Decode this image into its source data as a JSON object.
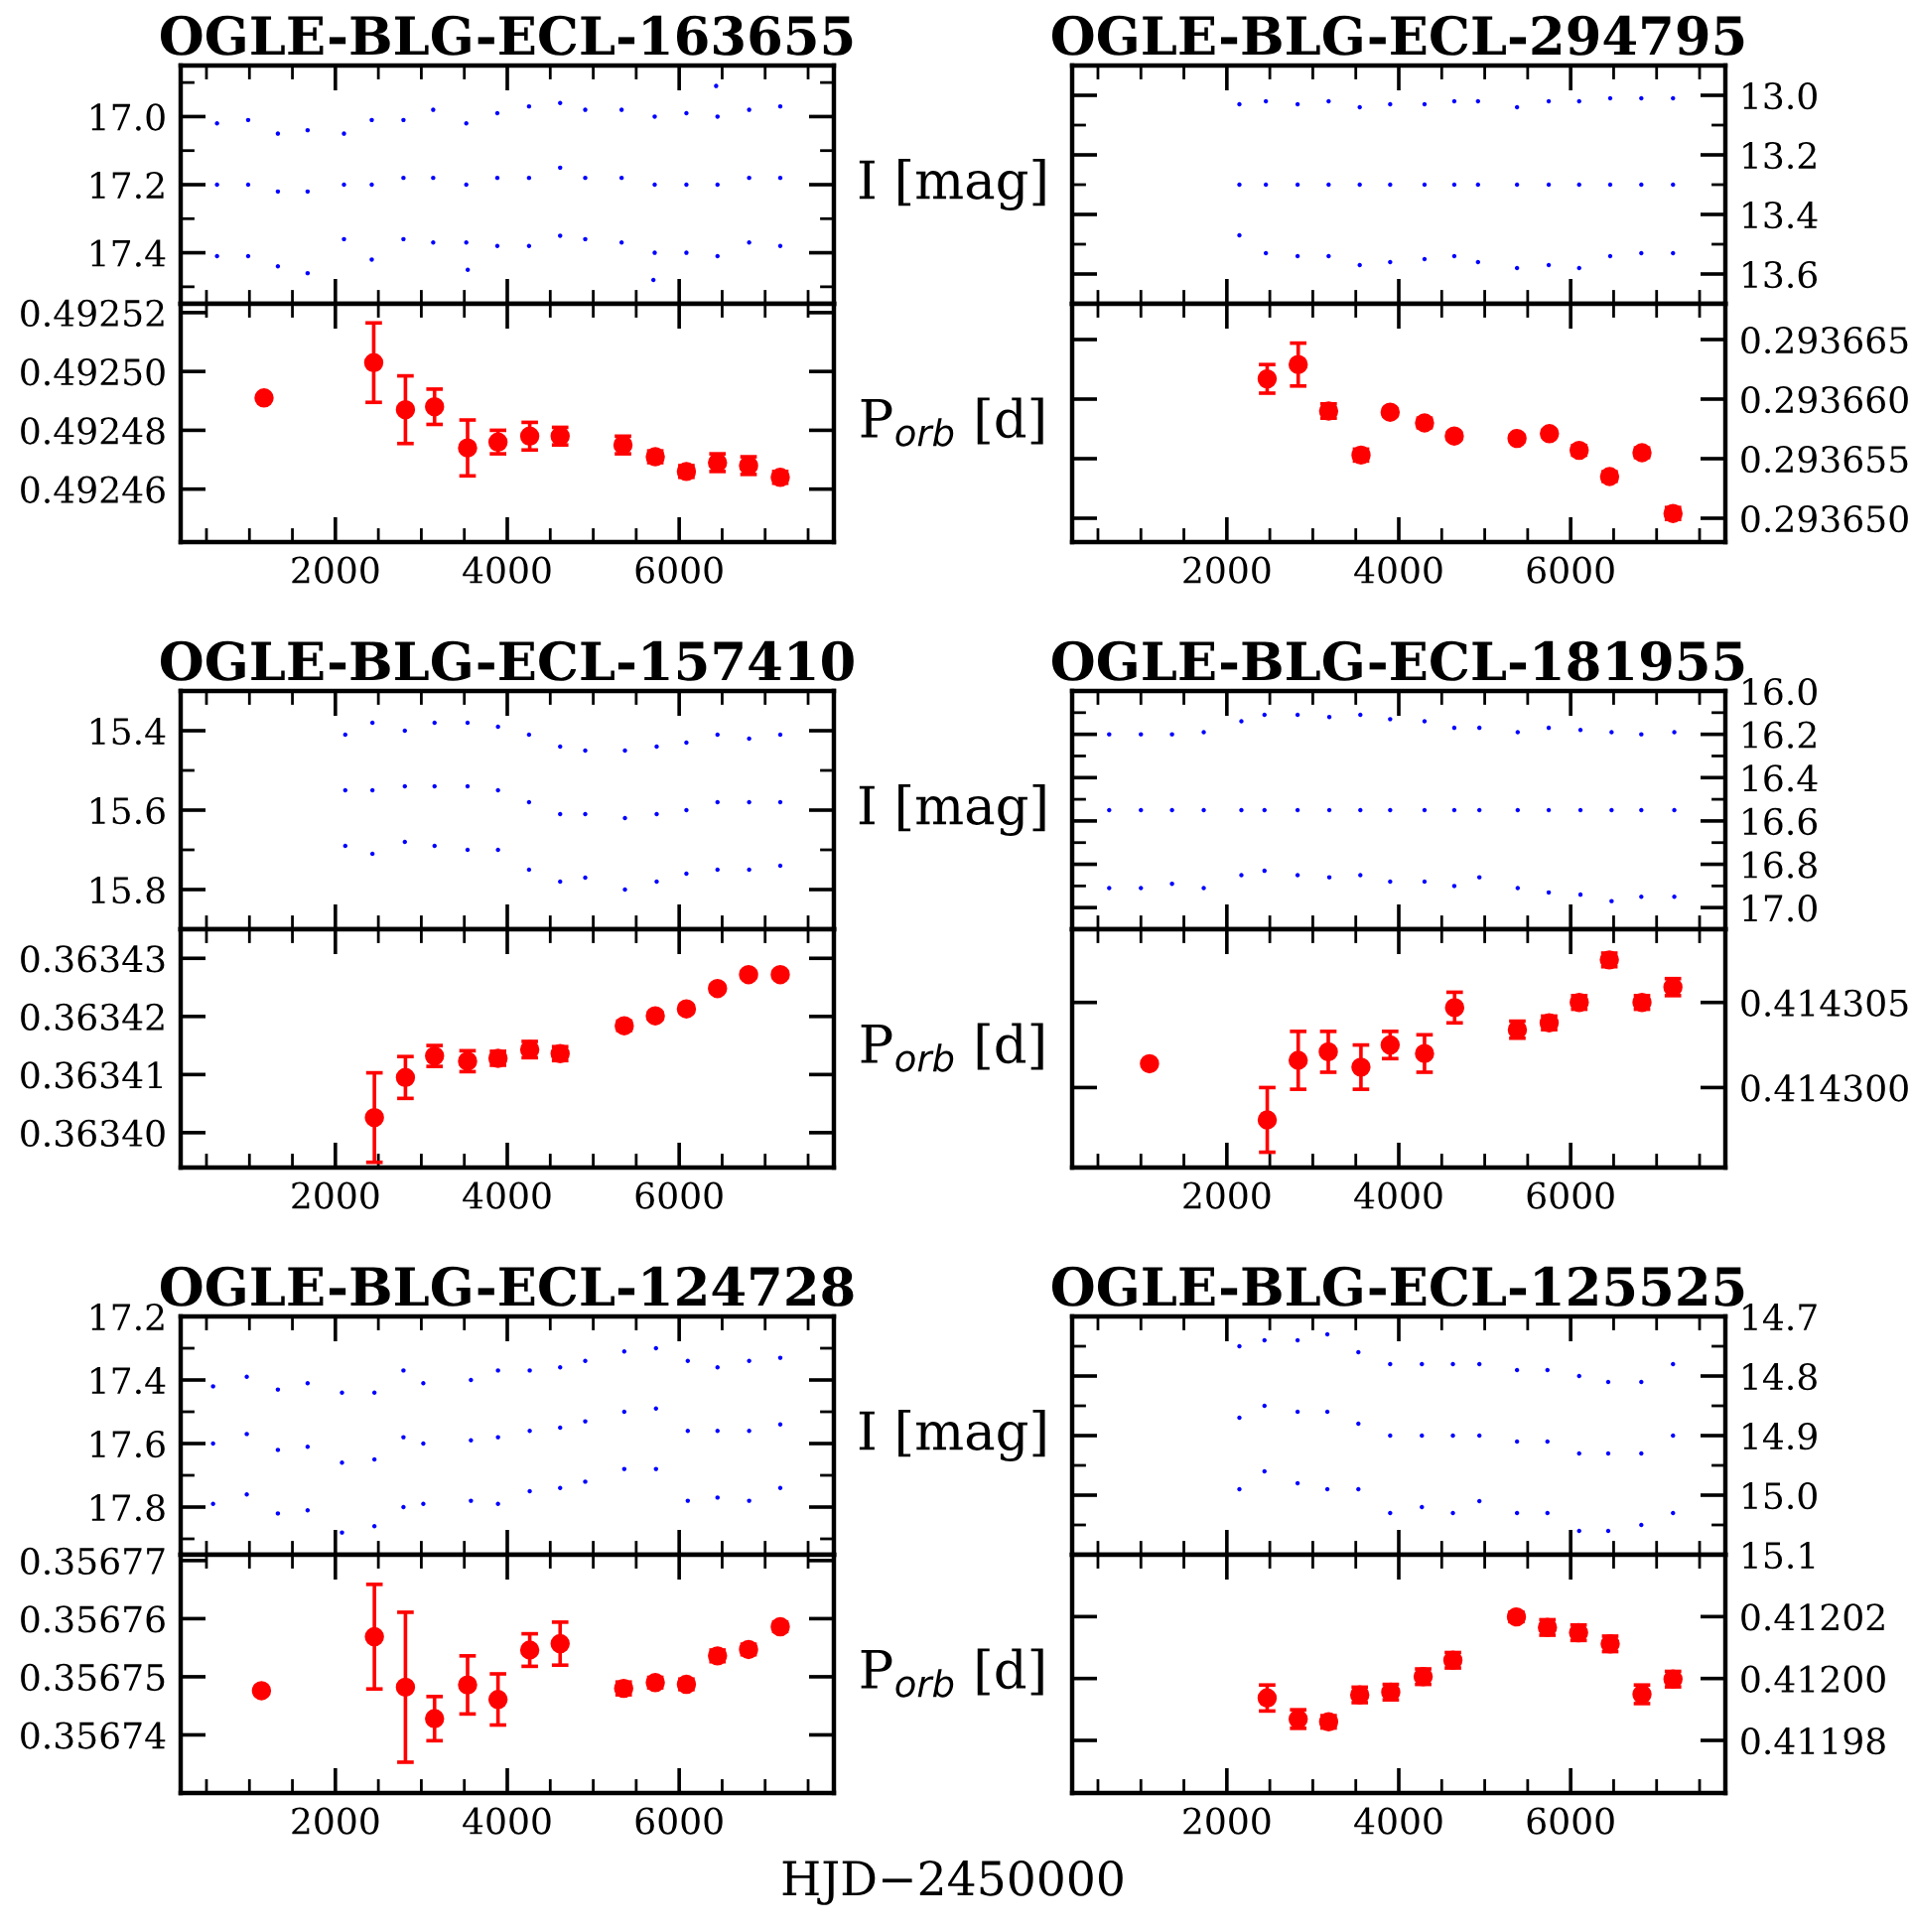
{
  "chart_data": [
    {
      "type": "scatter",
      "title": "OGLE-BLG-ECL-163655",
      "ylabel": "I [mag]",
      "marker": "circle",
      "tick_labels": "y",
      "xlim": [
        200,
        7800
      ],
      "ylim": [
        17.55,
        16.85
      ],
      "xticks": [
        {
          "value": 500,
          "label": null
        },
        {
          "value": 1000,
          "label": null
        },
        {
          "value": 1500,
          "label": null
        },
        2000,
        {
          "value": 2500,
          "label": null
        },
        {
          "value": 3000,
          "label": null
        },
        {
          "value": 3500,
          "label": null
        },
        4000,
        {
          "value": 4500,
          "label": null
        },
        {
          "value": 5000,
          "label": null
        },
        {
          "value": 5500,
          "label": null
        },
        6000,
        {
          "value": 6500,
          "label": null
        },
        {
          "value": 7000,
          "label": null
        },
        {
          "value": 7500,
          "label": null
        }
      ],
      "yticks": [
        {
          "value": 16.9,
          "label": null
        },
        {
          "value": 17.0,
          "label": "17.0"
        },
        {
          "value": 17.1,
          "label": null
        },
        {
          "value": 17.2,
          "label": "17.2"
        },
        {
          "value": 17.3,
          "label": null
        },
        {
          "value": 17.4,
          "label": "17.4"
        },
        {
          "value": 17.5,
          "label": null
        }
      ],
      "series": [
        {
          "color": "#0000ff",
          "x": [
            623,
            985,
            1331,
            1677,
            2100,
            2423,
            2792,
            3138,
            3523,
            3884,
            4253,
            4615,
            4907,
            5330,
            5715,
            6084,
            6446,
            6814,
            7176,
            623,
            985,
            1331,
            1677,
            2100,
            2423,
            2792,
            3138,
            3523,
            3884,
            4253,
            4615,
            4907,
            5330,
            5715,
            6084,
            6446,
            6814,
            7176,
            623,
            985,
            1331,
            1677,
            2100,
            2423,
            2792,
            3138,
            3523,
            3884,
            4253,
            4615,
            4907,
            5330,
            5715,
            6084,
            6446,
            6814,
            7176,
            3540,
            5700,
            6430
          ],
          "values": [
            17.02,
            17.01,
            17.05,
            17.04,
            17.05,
            17.01,
            17.01,
            16.98,
            17.02,
            16.99,
            16.97,
            16.96,
            16.98,
            16.98,
            17.0,
            16.99,
            17.0,
            16.98,
            16.97,
            17.2,
            17.2,
            17.22,
            17.22,
            17.2,
            17.2,
            17.18,
            17.18,
            17.2,
            17.18,
            17.18,
            17.15,
            17.18,
            17.18,
            17.2,
            17.2,
            17.2,
            17.18,
            17.18,
            17.41,
            17.41,
            17.44,
            17.46,
            17.36,
            17.42,
            17.36,
            17.37,
            17.37,
            17.38,
            17.38,
            17.35,
            17.36,
            17.37,
            17.4,
            17.4,
            17.41,
            17.37,
            17.38,
            17.45,
            17.48,
            16.91
          ]
        }
      ]
    },
    {
      "type": "scatter",
      "ylabel": "P$_{orb}$ [d]",
      "marker": "circle",
      "xlim": [
        200,
        7800
      ],
      "ylim": [
        0.492442,
        0.492523
      ],
      "xticks": [
        {
          "value": 500,
          "label": null
        },
        {
          "value": 1000,
          "label": null
        },
        {
          "value": 1500,
          "label": null
        },
        2000,
        {
          "value": 2500,
          "label": null
        },
        {
          "value": 3000,
          "label": null
        },
        {
          "value": 3500,
          "label": null
        },
        4000,
        {
          "value": 4500,
          "label": null
        },
        {
          "value": 5000,
          "label": null
        },
        {
          "value": 5500,
          "label": null
        },
        6000,
        {
          "value": 6500,
          "label": null
        },
        {
          "value": 7000,
          "label": null
        },
        {
          "value": 7500,
          "label": null
        }
      ],
      "yticks": [
        {
          "value": 0.49246,
          "label": "0.49246"
        },
        {
          "value": 0.49248,
          "label": "0.49248"
        },
        {
          "value": 0.4925,
          "label": "0.49250"
        },
        {
          "value": 0.49252,
          "label": "0.49252"
        }
      ],
      "series": [
        {
          "color": "#ff0000",
          "x": [
            1170,
            2446,
            2815,
            3154,
            3538,
            3892,
            4261,
            4615,
            5346,
            5722,
            6084,
            6446,
            6807,
            7176
          ],
          "values": [
            0.492491,
            0.492503,
            0.492487,
            0.492488,
            0.492474,
            0.492476,
            0.492478,
            0.492478,
            0.492475,
            0.492471,
            0.492466,
            0.492469,
            0.492468,
            0.492464
          ],
          "errors": [
            null,
            1.35e-05,
            1.15e-05,
            6e-06,
            9.5e-06,
            4e-06,
            4.7e-06,
            3e-06,
            3e-06,
            2e-06,
            2e-06,
            3e-06,
            3e-06,
            2e-06
          ]
        }
      ]
    },
    {
      "type": "scatter",
      "title": "OGLE-BLG-ECL-294795",
      "marker": "circle",
      "tick_labels": "y",
      "xlim": [
        200,
        7800
      ],
      "ylim": [
        13.7,
        12.9
      ],
      "xticks": [
        {
          "value": 500,
          "label": null
        },
        {
          "value": 1000,
          "label": null
        },
        {
          "value": 1500,
          "label": null
        },
        2000,
        {
          "value": 2500,
          "label": null
        },
        {
          "value": 3000,
          "label": null
        },
        {
          "value": 3500,
          "label": null
        },
        4000,
        {
          "value": 4500,
          "label": null
        },
        {
          "value": 5000,
          "label": null
        },
        {
          "value": 5500,
          "label": null
        },
        6000,
        {
          "value": 6500,
          "label": null
        },
        {
          "value": 7000,
          "label": null
        },
        {
          "value": 7500,
          "label": null
        }
      ],
      "yticks": [
        {
          "value": 13.0,
          "label": "13.0"
        },
        {
          "value": 13.1,
          "label": null
        },
        {
          "value": 13.2,
          "label": "13.2"
        },
        {
          "value": 13.3,
          "label": null
        },
        {
          "value": 13.4,
          "label": "13.4"
        },
        {
          "value": 13.5,
          "label": null
        },
        {
          "value": 13.6,
          "label": "13.6"
        }
      ],
      "series": [
        {
          "color": "#0000ff",
          "x": [
            2146,
            2454,
            2823,
            3184,
            3546,
            3900,
            4300,
            4646,
            4922,
            5376,
            5745,
            6099,
            6460,
            6822,
            7191,
            2146,
            2454,
            2823,
            3184,
            3546,
            3900,
            4300,
            4646,
            4922,
            5376,
            5745,
            6099,
            6460,
            6822,
            7191,
            2146,
            2454,
            2823,
            3184,
            3546,
            3900,
            4300,
            4646,
            4922,
            5376,
            5745,
            6099,
            6460,
            6822,
            7191
          ],
          "values": [
            13.03,
            13.02,
            13.03,
            13.02,
            13.04,
            13.03,
            13.03,
            13.02,
            13.02,
            13.04,
            13.02,
            13.02,
            13.01,
            13.01,
            13.01,
            13.3,
            13.3,
            13.3,
            13.3,
            13.3,
            13.3,
            13.3,
            13.3,
            13.3,
            13.3,
            13.3,
            13.3,
            13.3,
            13.3,
            13.3,
            13.47,
            13.53,
            13.54,
            13.54,
            13.57,
            13.56,
            13.55,
            13.54,
            13.56,
            13.58,
            13.57,
            13.58,
            13.54,
            13.53,
            13.53
          ]
        }
      ]
    },
    {
      "type": "scatter",
      "marker": "circle",
      "xlim": [
        200,
        7800
      ],
      "ylim": [
        0.293648,
        0.293668
      ],
      "xticks": [
        {
          "value": 500,
          "label": null
        },
        {
          "value": 1000,
          "label": null
        },
        {
          "value": 1500,
          "label": null
        },
        2000,
        {
          "value": 2500,
          "label": null
        },
        {
          "value": 3000,
          "label": null
        },
        {
          "value": 3500,
          "label": null
        },
        4000,
        {
          "value": 4500,
          "label": null
        },
        {
          "value": 5000,
          "label": null
        },
        {
          "value": 5500,
          "label": null
        },
        6000,
        {
          "value": 6500,
          "label": null
        },
        {
          "value": 7000,
          "label": null
        },
        {
          "value": 7500,
          "label": null
        }
      ],
      "yticks": [
        {
          "value": 0.29365,
          "label": "0.293650"
        },
        {
          "value": 0.293655,
          "label": "0.293655"
        },
        {
          "value": 0.29366,
          "label": "0.293660"
        },
        {
          "value": 0.293665,
          "label": "0.293665"
        }
      ],
      "series": [
        {
          "color": "#ff0000",
          "x": [
            2469,
            2830,
            3184,
            3561,
            3900,
            4300,
            4646,
            5376,
            5753,
            6099,
            6453,
            6830,
            7191
          ],
          "values": [
            0.2936617,
            0.2936629,
            0.293659,
            0.2936553,
            0.2936589,
            0.293658,
            0.2936569,
            0.2936567,
            0.2936571,
            0.2936557,
            0.2936535,
            0.2936555,
            0.2936504
          ],
          "errors": [
            1.2e-06,
            1.8e-06,
            6e-07,
            5e-07,
            3e-07,
            4e-07,
            3e-07,
            3e-07,
            3e-07,
            4e-07,
            4e-07,
            4e-07,
            5e-07
          ]
        }
      ]
    },
    {
      "type": "scatter",
      "title": "OGLE-BLG-ECL-157410",
      "ylabel": "I [mag]",
      "marker": "circle",
      "tick_labels": "y",
      "xlim": [
        200,
        7800
      ],
      "ylim": [
        15.9,
        15.3
      ],
      "xticks": [
        {
          "value": 500,
          "label": null
        },
        {
          "value": 1000,
          "label": null
        },
        {
          "value": 1500,
          "label": null
        },
        2000,
        {
          "value": 2500,
          "label": null
        },
        {
          "value": 3000,
          "label": null
        },
        {
          "value": 3500,
          "label": null
        },
        4000,
        {
          "value": 4500,
          "label": null
        },
        {
          "value": 5000,
          "label": null
        },
        {
          "value": 5500,
          "label": null
        },
        6000,
        {
          "value": 6500,
          "label": null
        },
        {
          "value": 7000,
          "label": null
        },
        {
          "value": 7500,
          "label": null
        }
      ],
      "yticks": [
        {
          "value": 15.4,
          "label": "15.4"
        },
        {
          "value": 15.5,
          "label": null
        },
        {
          "value": 15.6,
          "label": "15.6"
        },
        {
          "value": 15.7,
          "label": null
        },
        {
          "value": 15.8,
          "label": "15.8"
        }
      ],
      "series": [
        {
          "color": "#0000ff",
          "x": [
            2115,
            2431,
            2808,
            3154,
            3538,
            3892,
            4253,
            4615,
            4907,
            5369,
            5738,
            6084,
            6446,
            6814,
            7176,
            2115,
            2431,
            2808,
            3154,
            3538,
            3892,
            4253,
            4615,
            4907,
            5369,
            5738,
            6084,
            6446,
            6814,
            7176,
            2115,
            2431,
            2808,
            3154,
            3538,
            3892,
            4253,
            4615,
            4907,
            5369,
            5738,
            6084,
            6446,
            6814,
            7176
          ],
          "values": [
            15.41,
            15.38,
            15.4,
            15.38,
            15.38,
            15.39,
            15.41,
            15.44,
            15.45,
            15.45,
            15.44,
            15.43,
            15.41,
            15.42,
            15.41,
            15.55,
            15.55,
            15.54,
            15.54,
            15.54,
            15.55,
            15.58,
            15.61,
            15.61,
            15.62,
            15.61,
            15.6,
            15.58,
            15.58,
            15.58,
            15.69,
            15.71,
            15.68,
            15.69,
            15.7,
            15.7,
            15.75,
            15.78,
            15.77,
            15.8,
            15.78,
            15.76,
            15.75,
            15.75,
            15.74
          ]
        }
      ]
    },
    {
      "type": "scatter",
      "ylabel": "P$_{orb}$ [d]",
      "marker": "circle",
      "xlim": [
        200,
        7800
      ],
      "ylim": [
        0.363394,
        0.363435
      ],
      "xticks": [
        {
          "value": 500,
          "label": null
        },
        {
          "value": 1000,
          "label": null
        },
        {
          "value": 1500,
          "label": null
        },
        2000,
        {
          "value": 2500,
          "label": null
        },
        {
          "value": 3000,
          "label": null
        },
        {
          "value": 3500,
          "label": null
        },
        4000,
        {
          "value": 4500,
          "label": null
        },
        {
          "value": 5000,
          "label": null
        },
        {
          "value": 5500,
          "label": null
        },
        6000,
        {
          "value": 6500,
          "label": null
        },
        {
          "value": 7000,
          "label": null
        },
        {
          "value": 7500,
          "label": null
        }
      ],
      "yticks": [
        {
          "value": 0.3634,
          "label": "0.36340"
        },
        {
          "value": 0.36341,
          "label": "0.36341"
        },
        {
          "value": 0.36342,
          "label": "0.36342"
        },
        {
          "value": 0.36343,
          "label": "0.36343"
        }
      ],
      "series": [
        {
          "color": "#ff0000",
          "x": [
            2454,
            2815,
            3154,
            3538,
            3892,
            4261,
            4615,
            5361,
            5722,
            6084,
            6446,
            6807,
            7176
          ],
          "values": [
            0.3634026,
            0.3634095,
            0.3634132,
            0.3634123,
            0.3634128,
            0.3634143,
            0.3634136,
            0.3634184,
            0.3634201,
            0.3634213,
            0.3634248,
            0.3634272,
            0.3634272
          ],
          "errors": [
            7.7e-06,
            3.6e-06,
            1.8e-06,
            1.8e-06,
            1.2e-06,
            1.4e-06,
            1.2e-06,
            8e-07,
            6e-07,
            6e-07,
            6e-07,
            6e-07,
            6e-07
          ]
        }
      ]
    },
    {
      "type": "scatter",
      "title": "OGLE-BLG-ECL-181955",
      "marker": "circle",
      "tick_labels": "y",
      "xlim": [
        200,
        7800
      ],
      "ylim": [
        17.1,
        16.0
      ],
      "xticks": [
        {
          "value": 500,
          "label": null
        },
        {
          "value": 1000,
          "label": null
        },
        {
          "value": 1500,
          "label": null
        },
        2000,
        {
          "value": 2500,
          "label": null
        },
        {
          "value": 3000,
          "label": null
        },
        {
          "value": 3500,
          "label": null
        },
        4000,
        {
          "value": 4500,
          "label": null
        },
        {
          "value": 5000,
          "label": null
        },
        {
          "value": 5500,
          "label": null
        },
        6000,
        {
          "value": 6500,
          "label": null
        },
        {
          "value": 7000,
          "label": null
        },
        {
          "value": 7500,
          "label": null
        }
      ],
      "yticks": [
        {
          "value": 16.0,
          "label": "16.0"
        },
        {
          "value": 16.1,
          "label": null
        },
        {
          "value": 16.2,
          "label": "16.2"
        },
        {
          "value": 16.3,
          "label": null
        },
        {
          "value": 16.4,
          "label": "16.4"
        },
        {
          "value": 16.5,
          "label": null
        },
        {
          "value": 16.6,
          "label": "16.6"
        },
        {
          "value": 16.7,
          "label": null
        },
        {
          "value": 16.8,
          "label": "16.8"
        },
        {
          "value": 16.9,
          "label": null
        },
        {
          "value": 17.0,
          "label": "17.0"
        }
      ],
      "series": [
        {
          "color": "#0000ff",
          "x": [
            631,
            1000,
            1362,
            1731,
            2169,
            2438,
            2823,
            3192,
            3553,
            3900,
            4300,
            4646,
            4938,
            5384,
            5745,
            6114,
            6476,
            6822,
            7206,
            631,
            1000,
            1362,
            1731,
            2169,
            2438,
            2823,
            3192,
            3553,
            3900,
            4300,
            4646,
            4938,
            5384,
            5745,
            6114,
            6476,
            6822,
            7206,
            631,
            1000,
            1362,
            1731,
            2169,
            2438,
            2823,
            3192,
            3553,
            3900,
            4300,
            4646,
            4938,
            5384,
            5745,
            6114,
            6476,
            6822,
            7206
          ],
          "values": [
            16.2,
            16.2,
            16.2,
            16.19,
            16.14,
            16.11,
            16.11,
            16.12,
            16.11,
            16.13,
            16.14,
            16.17,
            16.17,
            16.19,
            16.17,
            16.18,
            16.19,
            16.2,
            16.19,
            16.55,
            16.55,
            16.55,
            16.55,
            16.55,
            16.55,
            16.55,
            16.55,
            16.55,
            16.55,
            16.55,
            16.55,
            16.55,
            16.55,
            16.55,
            16.55,
            16.55,
            16.55,
            16.55,
            16.91,
            16.91,
            16.89,
            16.91,
            16.85,
            16.83,
            16.85,
            16.86,
            16.85,
            16.88,
            16.88,
            16.9,
            16.86,
            16.91,
            16.93,
            16.94,
            16.97,
            16.95,
            16.95
          ]
        }
      ]
    },
    {
      "type": "scatter",
      "marker": "circle",
      "xlim": [
        200,
        7800
      ],
      "ylim": [
        0.4142953,
        0.4143093
      ],
      "xticks": [
        {
          "value": 500,
          "label": null
        },
        {
          "value": 1000,
          "label": null
        },
        {
          "value": 1500,
          "label": null
        },
        2000,
        {
          "value": 2500,
          "label": null
        },
        {
          "value": 3000,
          "label": null
        },
        {
          "value": 3500,
          "label": null
        },
        4000,
        {
          "value": 4500,
          "label": null
        },
        {
          "value": 5000,
          "label": null
        },
        {
          "value": 5500,
          "label": null
        },
        6000,
        {
          "value": 6500,
          "label": null
        },
        {
          "value": 7000,
          "label": null
        },
        {
          "value": 7500,
          "label": null
        }
      ],
      "yticks": [
        {
          "value": 0.4143,
          "label": "0.414300"
        },
        {
          "value": 0.414305,
          "label": "0.414305"
        }
      ],
      "series": [
        {
          "color": "#ff0000",
          "x": [
            1100,
            2470,
            2830,
            3180,
            3560,
            3900,
            4300,
            4650,
            5380,
            5750,
            6100,
            6450,
            6830,
            7190
          ],
          "values": [
            0.4143014,
            0.4142981,
            0.4143016,
            0.4143021,
            0.4143012,
            0.4143025,
            0.414302,
            0.4143047,
            0.4143034,
            0.4143038,
            0.414305,
            0.4143075,
            0.414305,
            0.4143059
          ],
          "errors": [
            null,
            1.9e-06,
            1.7e-06,
            1.2e-06,
            1.3e-06,
            8e-07,
            1.1e-06,
            9e-07,
            5e-07,
            4e-07,
            4e-07,
            4e-07,
            4e-07,
            5e-07
          ]
        }
      ]
    },
    {
      "type": "scatter",
      "title": "OGLE-BLG-ECL-124728",
      "ylabel": "I [mag]",
      "marker": "circle",
      "tick_labels": "y",
      "xlim": [
        200,
        7800
      ],
      "ylim": [
        17.95,
        17.2
      ],
      "xticks": [
        {
          "value": 500,
          "label": null
        },
        {
          "value": 1000,
          "label": null
        },
        {
          "value": 1500,
          "label": null
        },
        2000,
        {
          "value": 2500,
          "label": null
        },
        {
          "value": 3000,
          "label": null
        },
        {
          "value": 3500,
          "label": null
        },
        4000,
        {
          "value": 4500,
          "label": null
        },
        {
          "value": 5000,
          "label": null
        },
        {
          "value": 5500,
          "label": null
        },
        6000,
        {
          "value": 6500,
          "label": null
        },
        {
          "value": 7000,
          "label": null
        },
        {
          "value": 7500,
          "label": null
        }
      ],
      "yticks": [
        {
          "value": 17.2,
          "label": "17.2"
        },
        {
          "value": 17.3,
          "label": null
        },
        {
          "value": 17.4,
          "label": "17.4"
        },
        {
          "value": 17.5,
          "label": null
        },
        {
          "value": 17.6,
          "label": "17.6"
        },
        {
          "value": 17.7,
          "label": null
        },
        {
          "value": 17.8,
          "label": "17.8"
        },
        {
          "value": 17.9,
          "label": null
        }
      ],
      "series": [
        {
          "color": "#0000ff",
          "x": [
            577,
            969,
            1331,
            1677,
            2077,
            2454,
            2792,
            3023,
            3577,
            3892,
            4261,
            4615,
            4907,
            5361,
            5730,
            6100,
            6446,
            6814,
            7176,
            577,
            969,
            1331,
            1677,
            2077,
            2454,
            2792,
            3023,
            3577,
            3892,
            4261,
            4615,
            4907,
            5361,
            5730,
            6100,
            6446,
            6814,
            7176,
            577,
            969,
            1331,
            1677,
            2077,
            2454,
            2792,
            3023,
            3577,
            3892,
            4261,
            4615,
            4907,
            5361,
            5730,
            6100,
            6446,
            6814,
            7176
          ],
          "values": [
            17.42,
            17.39,
            17.43,
            17.41,
            17.44,
            17.44,
            17.37,
            17.41,
            17.4,
            17.37,
            17.37,
            17.36,
            17.34,
            17.31,
            17.3,
            17.34,
            17.36,
            17.34,
            17.33,
            17.6,
            17.57,
            17.62,
            17.61,
            17.66,
            17.65,
            17.58,
            17.6,
            17.59,
            17.58,
            17.56,
            17.55,
            17.53,
            17.5,
            17.49,
            17.56,
            17.56,
            17.56,
            17.54,
            17.79,
            17.76,
            17.82,
            17.81,
            17.88,
            17.86,
            17.8,
            17.79,
            17.78,
            17.79,
            17.75,
            17.74,
            17.72,
            17.68,
            17.68,
            17.78,
            17.77,
            17.78,
            17.74
          ]
        }
      ]
    },
    {
      "type": "scatter",
      "ylabel": "P$_{orb}$ [d]",
      "xlabel": "HJD−2450000",
      "marker": "circle",
      "xlim": [
        200,
        7800
      ],
      "ylim": [
        0.35673,
        0.356771
      ],
      "xticks": [
        {
          "value": 500,
          "label": null
        },
        {
          "value": 1000,
          "label": null
        },
        {
          "value": 1500,
          "label": null
        },
        2000,
        {
          "value": 2500,
          "label": null
        },
        {
          "value": 3000,
          "label": null
        },
        {
          "value": 3500,
          "label": null
        },
        4000,
        {
          "value": 4500,
          "label": null
        },
        {
          "value": 5000,
          "label": null
        },
        {
          "value": 5500,
          "label": null
        },
        6000,
        {
          "value": 6500,
          "label": null
        },
        {
          "value": 7000,
          "label": null
        },
        {
          "value": 7500,
          "label": null
        }
      ],
      "yticks": [
        {
          "value": 0.35674,
          "label": "0.35674"
        },
        {
          "value": 0.35675,
          "label": "0.35675"
        },
        {
          "value": 0.35676,
          "label": "0.35676"
        },
        {
          "value": 0.35677,
          "label": "0.35677"
        }
      ],
      "series": [
        {
          "color": "#ff0000",
          "x": [
            1140,
            2454,
            2815,
            3154,
            3538,
            3892,
            4261,
            4615,
            5354,
            5722,
            6084,
            6446,
            6807,
            7176
          ],
          "values": [
            0.3567476,
            0.3567569,
            0.3567482,
            0.3567428,
            0.3567486,
            0.3567461,
            0.3567546,
            0.3567557,
            0.356748,
            0.356749,
            0.3567487,
            0.3567536,
            0.3567547,
            0.3567586
          ],
          "errors": [
            null,
            9e-06,
            1.29e-05,
            3.8e-06,
            5e-06,
            4.4e-06,
            2.8e-06,
            3.7e-06,
            1.1e-06,
            9e-07,
            9e-07,
            1e-06,
            9e-07,
            8e-07
          ]
        }
      ]
    },
    {
      "type": "scatter",
      "title": "OGLE-BLG-ECL-125525",
      "marker": "circle",
      "tick_labels": "y",
      "xlim": [
        200,
        7800
      ],
      "ylim": [
        15.1,
        14.7
      ],
      "xticks": [
        {
          "value": 500,
          "label": null
        },
        {
          "value": 1000,
          "label": null
        },
        {
          "value": 1500,
          "label": null
        },
        2000,
        {
          "value": 2500,
          "label": null
        },
        {
          "value": 3000,
          "label": null
        },
        {
          "value": 3500,
          "label": null
        },
        4000,
        {
          "value": 4500,
          "label": null
        },
        {
          "value": 5000,
          "label": null
        },
        {
          "value": 5500,
          "label": null
        },
        6000,
        {
          "value": 6500,
          "label": null
        },
        {
          "value": 7000,
          "label": null
        },
        {
          "value": 7500,
          "label": null
        }
      ],
      "yticks": [
        {
          "value": 14.7,
          "label": "14.7"
        },
        {
          "value": 14.75,
          "label": null
        },
        {
          "value": 14.8,
          "label": "14.8"
        },
        {
          "value": 14.85,
          "label": null
        },
        {
          "value": 14.9,
          "label": "14.9"
        },
        {
          "value": 14.95,
          "label": null
        },
        {
          "value": 15.0,
          "label": "15.0"
        },
        {
          "value": 15.05,
          "label": null
        },
        {
          "value": 15.1,
          "label": "15.1"
        }
      ],
      "series": [
        {
          "color": "#0000ff",
          "x": [
            2146,
            2438,
            2823,
            3169,
            3530,
            3900,
            4269,
            4630,
            4938,
            5376,
            5730,
            6099,
            6437,
            6822,
            7191,
            2146,
            2438,
            2823,
            3169,
            3530,
            3900,
            4269,
            4630,
            4938,
            5376,
            5730,
            6099,
            6437,
            6822,
            7191,
            2146,
            2438,
            2823,
            3169,
            3530,
            3900,
            4269,
            4630,
            4938,
            5376,
            5730,
            6099,
            6437,
            6822,
            7191
          ],
          "values": [
            14.75,
            14.74,
            14.74,
            14.73,
            14.76,
            14.78,
            14.78,
            14.78,
            14.78,
            14.79,
            14.79,
            14.8,
            14.81,
            14.81,
            14.78,
            14.87,
            14.85,
            14.86,
            14.86,
            14.88,
            14.9,
            14.9,
            14.9,
            14.9,
            14.91,
            14.91,
            14.93,
            14.93,
            14.93,
            14.9,
            14.99,
            14.96,
            14.98,
            14.99,
            14.99,
            15.03,
            15.02,
            15.03,
            15.01,
            15.03,
            15.03,
            15.06,
            15.06,
            15.05,
            15.03
          ]
        }
      ]
    },
    {
      "type": "scatter",
      "marker": "circle",
      "xlim": [
        200,
        7800
      ],
      "ylim": [
        0.411963,
        0.41204
      ],
      "xticks": [
        {
          "value": 500,
          "label": null
        },
        {
          "value": 1000,
          "label": null
        },
        {
          "value": 1500,
          "label": null
        },
        2000,
        {
          "value": 2500,
          "label": null
        },
        {
          "value": 3000,
          "label": null
        },
        {
          "value": 3500,
          "label": null
        },
        4000,
        {
          "value": 4500,
          "label": null
        },
        {
          "value": 5000,
          "label": null
        },
        {
          "value": 5500,
          "label": null
        },
        6000,
        {
          "value": 6500,
          "label": null
        },
        {
          "value": 7000,
          "label": null
        },
        {
          "value": 7500,
          "label": null
        }
      ],
      "yticks": [
        {
          "value": 0.41198,
          "label": "0.41198"
        },
        {
          "value": 0.412,
          "label": "0.41200"
        },
        {
          "value": 0.41202,
          "label": "0.41202"
        }
      ],
      "series": [
        {
          "color": "#ff0000",
          "x": [
            2469,
            2830,
            3184,
            3546,
            3907,
            4284,
            4630,
            5369,
            5730,
            6092,
            6460,
            6830,
            7191
          ],
          "values": [
            0.4119937,
            0.4119869,
            0.411986,
            0.4119947,
            0.4119956,
            0.4120006,
            0.4120059,
            0.4120199,
            0.4120165,
            0.4120148,
            0.4120112,
            0.4119949,
            0.4119998
          ],
          "errors": [
            4.2e-06,
            3e-06,
            2e-06,
            2.5e-06,
            2.5e-06,
            2.5e-06,
            2.5e-06,
            1.5e-06,
            2.5e-06,
            2.5e-06,
            2.5e-06,
            3e-06,
            2.5e-06
          ]
        }
      ]
    }
  ]
}
